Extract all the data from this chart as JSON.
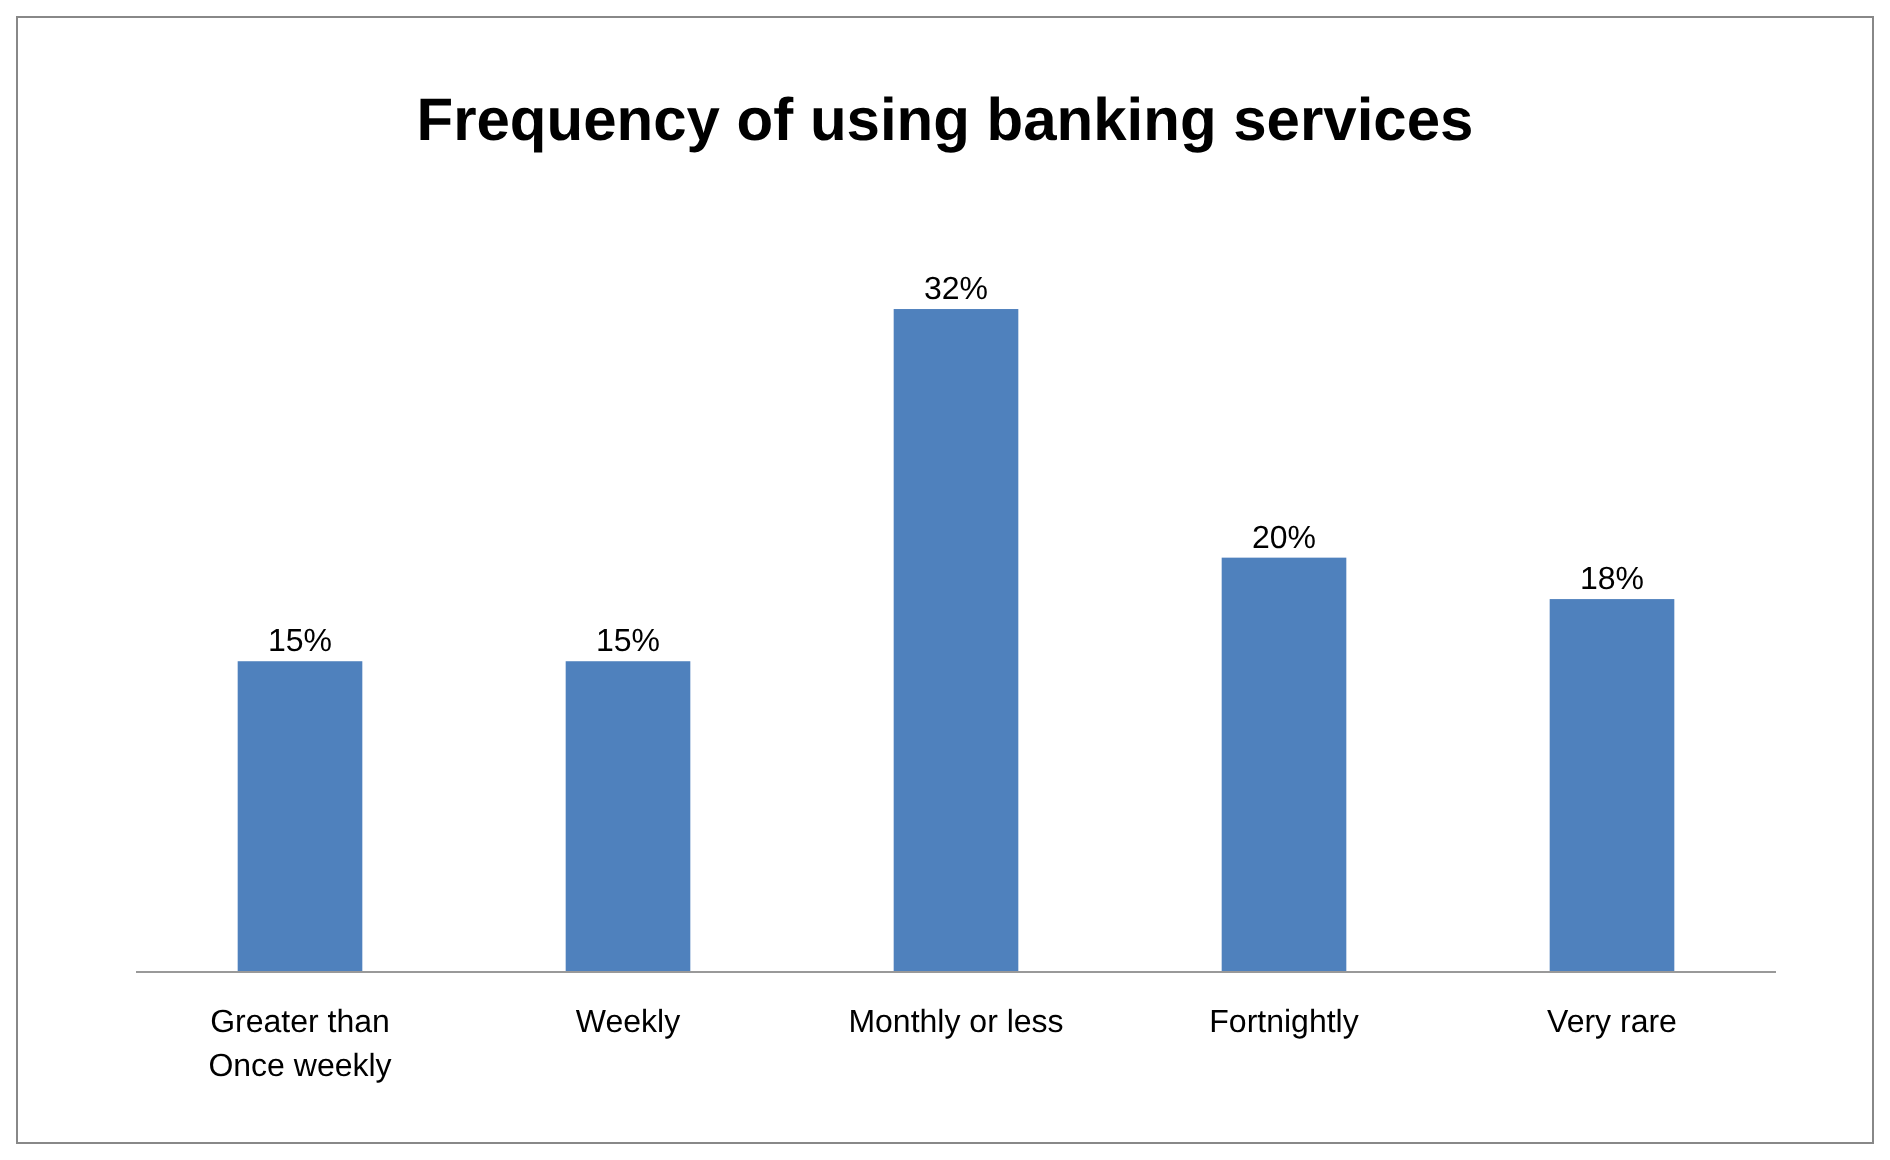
{
  "chart_data": {
    "type": "bar",
    "title": "Frequency of using banking services",
    "categories": [
      "Greater than Once weekly",
      "Weekly",
      "Monthly or less",
      "Fortnightly",
      "Very rare"
    ],
    "values": [
      15,
      15,
      32,
      20,
      18
    ],
    "value_labels": [
      "15%",
      "15%",
      "32%",
      "20%",
      "18%"
    ],
    "color": "#4f81bd"
  }
}
